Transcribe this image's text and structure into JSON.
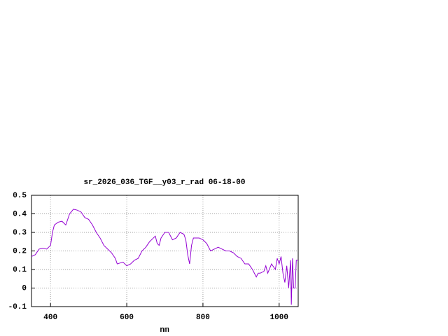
{
  "chart_data": {
    "type": "line",
    "title": "sr_2026_036_TGF__y03_r_rad 06-18-00",
    "x_label": "nm",
    "xlim": [
      350,
      1050
    ],
    "xticks": [
      400,
      600,
      800,
      1000
    ],
    "ylim": [
      -0.1,
      0.5
    ],
    "yticks": [
      0.5,
      0.4,
      0.3,
      0.2,
      0.1,
      0,
      -0.1
    ],
    "grid": true,
    "series": [
      {
        "color": "#9400d3",
        "x": [
          350,
          360,
          370,
          380,
          390,
          400,
          405,
          410,
          420,
          430,
          440,
          450,
          460,
          470,
          480,
          490,
          500,
          510,
          520,
          530,
          540,
          550,
          560,
          570,
          575,
          590,
          600,
          610,
          620,
          630,
          640,
          650,
          660,
          670,
          675,
          680,
          685,
          690,
          700,
          710,
          720,
          730,
          740,
          750,
          755,
          760,
          765,
          770,
          775,
          790,
          800,
          810,
          820,
          830,
          840,
          850,
          860,
          870,
          880,
          890,
          900,
          910,
          920,
          930,
          940,
          945,
          950,
          960,
          965,
          970,
          980,
          990,
          995,
          1000,
          1005,
          1010,
          1015,
          1020,
          1025,
          1030,
          1032,
          1035,
          1038,
          1042,
          1045,
          1050
        ],
        "values": [
          0.17,
          0.18,
          0.21,
          0.215,
          0.21,
          0.23,
          0.3,
          0.34,
          0.355,
          0.36,
          0.34,
          0.4,
          0.425,
          0.42,
          0.41,
          0.38,
          0.37,
          0.34,
          0.3,
          0.27,
          0.23,
          0.21,
          0.19,
          0.16,
          0.13,
          0.14,
          0.12,
          0.13,
          0.15,
          0.16,
          0.2,
          0.22,
          0.25,
          0.27,
          0.28,
          0.24,
          0.23,
          0.27,
          0.3,
          0.3,
          0.26,
          0.27,
          0.3,
          0.29,
          0.26,
          0.18,
          0.13,
          0.23,
          0.27,
          0.27,
          0.26,
          0.24,
          0.2,
          0.21,
          0.22,
          0.21,
          0.2,
          0.2,
          0.19,
          0.17,
          0.16,
          0.13,
          0.13,
          0.1,
          0.06,
          0.08,
          0.08,
          0.09,
          0.12,
          0.08,
          0.13,
          0.1,
          0.16,
          0.13,
          0.17,
          0.08,
          0.03,
          0.12,
          0.0,
          0.15,
          -0.09,
          0.16,
          0.0,
          0.0,
          0.15,
          0.15
        ]
      }
    ]
  }
}
